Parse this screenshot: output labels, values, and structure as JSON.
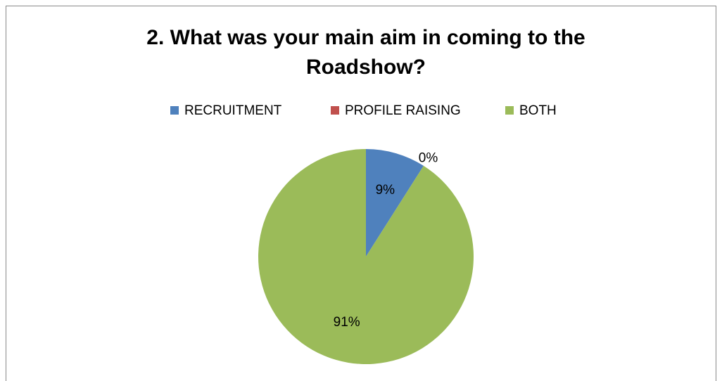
{
  "chart_data": {
    "type": "pie",
    "title": "2. What was your main aim in coming to the Roadshow?",
    "categories": [
      "RECRUITMENT",
      "PROFILE RAISING",
      "BOTH"
    ],
    "values": [
      9,
      0,
      91
    ],
    "value_labels": [
      "9%",
      "0%",
      "91%"
    ],
    "colors": [
      "#4f81bd",
      "#c0504d",
      "#9bbb59"
    ],
    "legend": "top"
  }
}
